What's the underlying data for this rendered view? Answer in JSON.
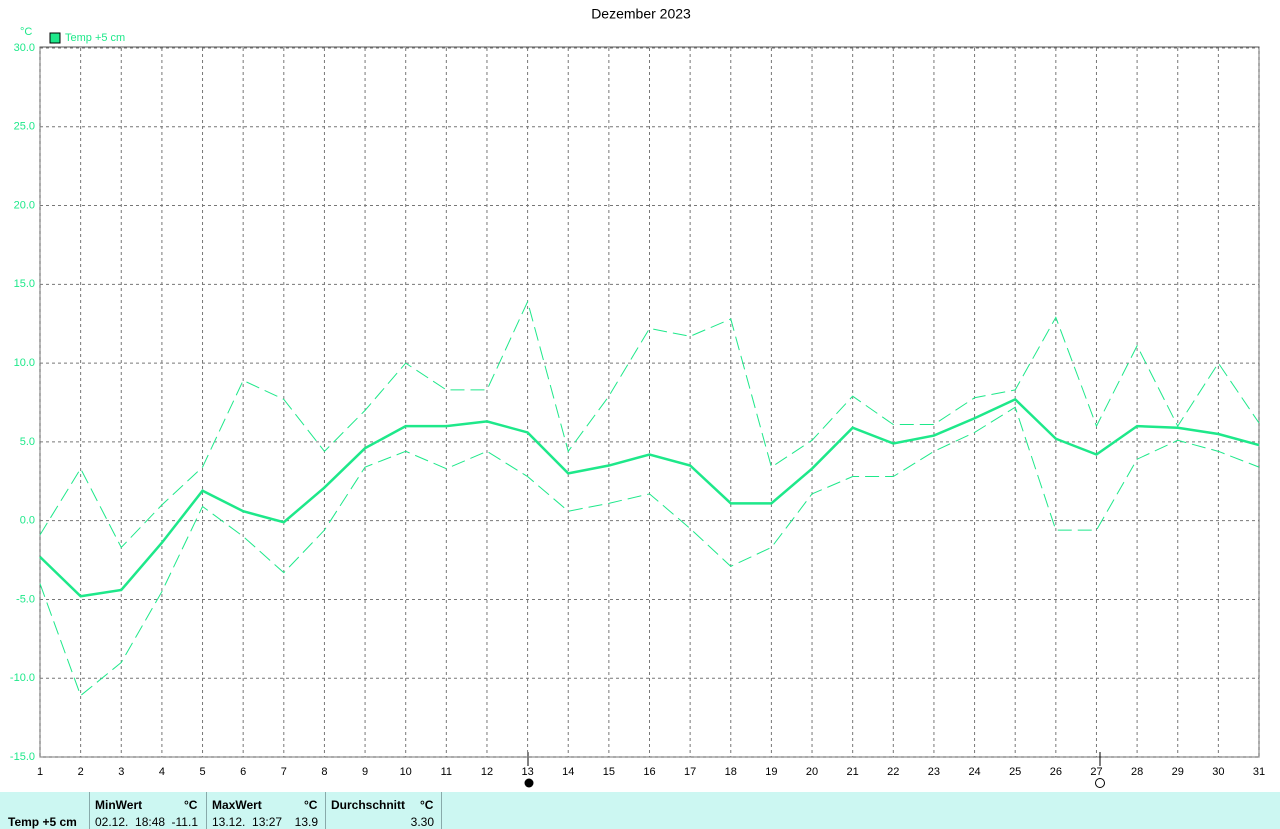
{
  "chart_data": {
    "type": "line",
    "title": "Dezember 2023",
    "y_unit": "°C",
    "x": [
      1,
      2,
      3,
      4,
      5,
      6,
      7,
      8,
      9,
      10,
      11,
      12,
      13,
      14,
      15,
      16,
      17,
      18,
      19,
      20,
      21,
      22,
      23,
      24,
      25,
      26,
      27,
      28,
      29,
      30,
      31
    ],
    "xlim": [
      1,
      31
    ],
    "xticks": [
      1,
      2,
      3,
      4,
      5,
      6,
      7,
      8,
      9,
      10,
      11,
      12,
      13,
      14,
      15,
      16,
      17,
      18,
      19,
      20,
      21,
      22,
      23,
      24,
      25,
      26,
      27,
      28,
      29,
      30,
      31
    ],
    "ylim": [
      -15,
      30
    ],
    "yticks": [
      {
        "value": -15,
        "label": "-15.0"
      },
      {
        "value": -10,
        "label": "-10.0"
      },
      {
        "value": -5,
        "label": "-5.0"
      },
      {
        "value": 0,
        "label": "0.0"
      },
      {
        "value": 5,
        "label": "5.0"
      },
      {
        "value": 10,
        "label": "10.0"
      },
      {
        "value": 15,
        "label": "15.0"
      },
      {
        "value": 20,
        "label": "20.0"
      },
      {
        "value": 25,
        "label": "25.0"
      },
      {
        "value": 30,
        "label": "30.0"
      }
    ],
    "grid": true,
    "legend": "top-left",
    "series": [
      {
        "name": "Temp +5 cm",
        "color": "#1ee88a",
        "line_style": "solid",
        "values": [
          -2.3,
          -4.8,
          -4.4,
          -1.4,
          1.9,
          0.6,
          -0.1,
          2.1,
          4.6,
          6.0,
          6.0,
          6.3,
          5.6,
          3.0,
          3.5,
          4.2,
          3.5,
          1.1,
          1.1,
          3.3,
          5.9,
          4.9,
          5.4,
          6.5,
          7.7,
          5.2,
          4.2,
          6.0,
          5.9,
          5.5,
          4.8
        ]
      },
      {
        "color": "#1ee88a",
        "line_style": "dashed",
        "values": [
          -0.9,
          3.3,
          -1.7,
          1.0,
          3.4,
          8.9,
          7.7,
          4.4,
          7.0,
          10.0,
          8.3,
          8.3,
          13.9,
          4.4,
          7.9,
          12.2,
          11.7,
          12.8,
          3.4,
          5.1,
          7.9,
          6.1,
          6.1,
          7.8,
          8.3,
          12.9,
          6.0,
          11.1,
          6.0,
          10.0,
          6.2
        ]
      },
      {
        "color": "#1ee88a",
        "line_style": "dashed",
        "values": [
          -4.0,
          -11.1,
          -9.0,
          -4.5,
          0.9,
          -1.0,
          -3.3,
          -0.6,
          3.4,
          4.4,
          3.3,
          4.4,
          2.8,
          0.6,
          1.1,
          1.7,
          -0.5,
          -2.9,
          -1.7,
          1.7,
          2.8,
          2.8,
          4.4,
          5.6,
          7.2,
          -0.6,
          -0.6,
          3.9,
          5.1,
          4.4,
          3.4
        ]
      }
    ]
  },
  "table": {
    "row_label": "Temp +5 cm",
    "columns": [
      {
        "header": "MinWert",
        "unit": "°C",
        "date": "02.12.  18:48",
        "value": "-11.1"
      },
      {
        "header": "MaxWert",
        "unit": "°C",
        "date": "13.12.  13:27",
        "value": "13.9"
      },
      {
        "header": "Durchschnitt",
        "unit": "°C",
        "date": "",
        "value": "3.30"
      }
    ]
  }
}
